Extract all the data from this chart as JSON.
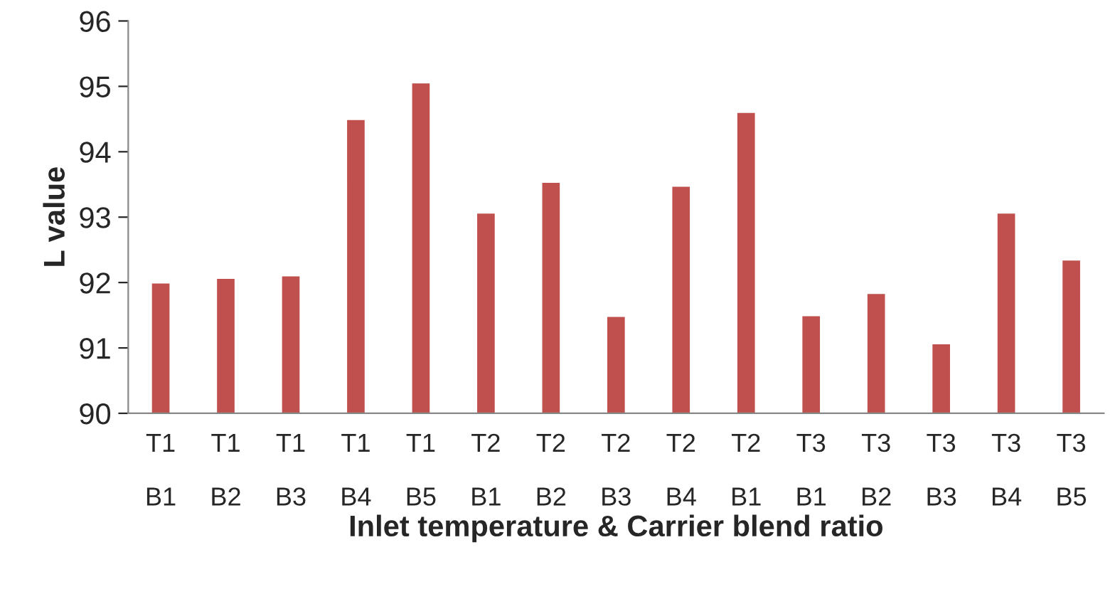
{
  "chart_data": {
    "type": "bar",
    "xlabel": "Inlet temperature & Carrier blend ratio",
    "ylabel": "L value",
    "categories": [
      "T1\nB1",
      "T1\nB2",
      "T1\nB3",
      "T1\nB4",
      "T1\nB5",
      "T2\nB1",
      "T2\nB2",
      "T2\nB3",
      "T2\nB4",
      "T2\nB1",
      "T3\nB1",
      "T3\nB2",
      "T3\nB3",
      "T3\nB4",
      "T3\nB5"
    ],
    "values": [
      92.0,
      92.07,
      92.11,
      94.5,
      95.06,
      93.07,
      93.54,
      91.49,
      93.48,
      94.61,
      91.5,
      91.84,
      91.07,
      93.07,
      92.35
    ],
    "color": "#c0504d",
    "ylim": [
      90,
      96
    ],
    "yticks": [
      90,
      91,
      92,
      93,
      94,
      95,
      96
    ],
    "grid": false,
    "legend": false
  }
}
